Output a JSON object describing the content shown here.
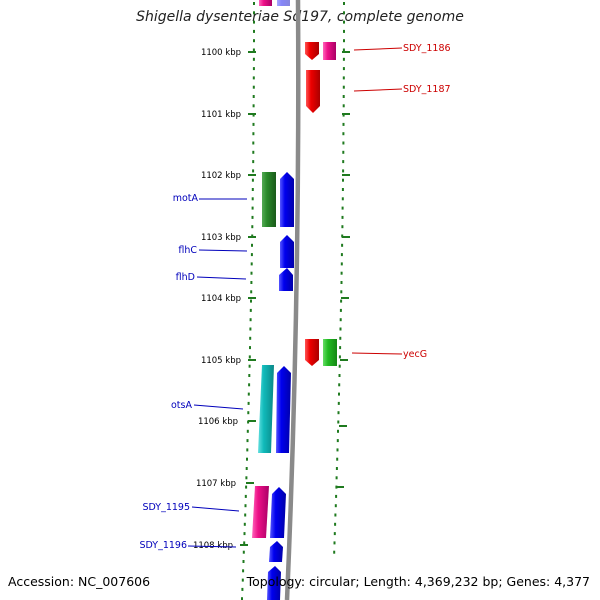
{
  "title": "Shigella dysenteriae Sd197, complete genome",
  "footer": {
    "accession": "Accession: NC_007606",
    "summary": "Topology: circular; Length: 4,369,232 bp; Genes: 4,377"
  },
  "ticks": [
    "1100 kbp",
    "1101 kbp",
    "1102 kbp",
    "1103 kbp",
    "1104 kbp",
    "1105 kbp",
    "1106 kbp",
    "1107 kbp",
    "1108 kbp"
  ],
  "labels_left": [
    "motA",
    "flhC",
    "flhD",
    "otsA",
    "SDY_1195",
    "SDY_1196"
  ],
  "labels_right": [
    "SDY_1186",
    "SDY_1187",
    "yecG"
  ],
  "colors": {
    "backbone": "#8a8a8a",
    "dots": "#1f7a1f",
    "left_label": "#0000bb",
    "right_label": "#cc0000",
    "blue": "#0000ee",
    "red": "#ee0000",
    "green": "#2a8a2a",
    "light_green": "#22bb22",
    "magenta": "#ee1188",
    "cyan": "#11bbbb"
  }
}
